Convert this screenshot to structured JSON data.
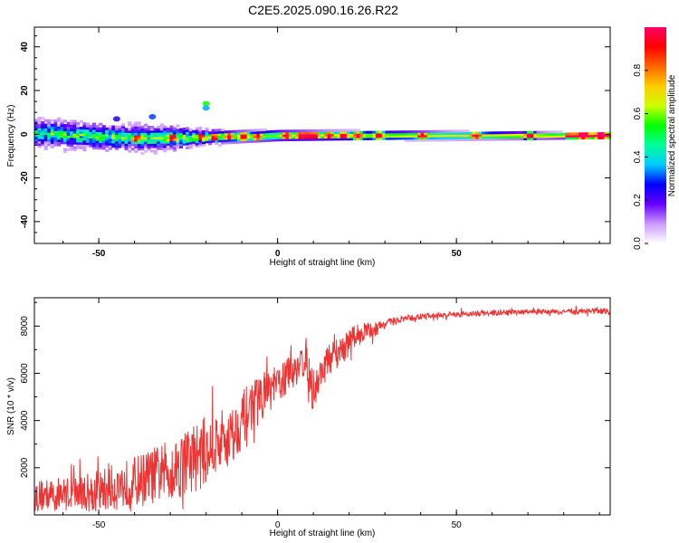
{
  "title": "C2E5.2025.090.16.26.R22",
  "chart_data": [
    {
      "type": "heatmap",
      "xlabel": "Height of straight line (km)",
      "ylabel": "Frequency (Hz)",
      "xlim": [
        -68,
        93
      ],
      "ylim": [
        -50,
        49
      ],
      "x_ticks": [
        "-50",
        "0",
        "50"
      ],
      "x_tick_values": [
        -50,
        0,
        50
      ],
      "y_ticks": [
        "40",
        "20",
        "0",
        "-20",
        "-40"
      ],
      "y_tick_values": [
        40,
        20,
        0,
        -20,
        -40
      ],
      "colorbar": {
        "label": "Normalized spectral amplitude",
        "range": [
          0,
          1
        ],
        "ticks": [
          "0.0",
          "0.2",
          "0.4",
          "0.6",
          "0.8"
        ],
        "tick_values": [
          0.0,
          0.2,
          0.4,
          0.6,
          0.8
        ],
        "colormap": [
          "#ffffff",
          "#cc99ff",
          "#6600ff",
          "#0000ff",
          "#00ccff",
          "#00ff99",
          "#00ff00",
          "#ccff00",
          "#ffcc00",
          "#ff6600",
          "#ff0000",
          "#ff0066"
        ]
      },
      "band_center_hz": [
        [
          -68,
          0
        ],
        [
          -40,
          -2
        ],
        [
          -25,
          -2
        ],
        [
          0,
          -1
        ],
        [
          30,
          -1
        ],
        [
          60,
          -1
        ],
        [
          93,
          -1
        ]
      ],
      "band_halfwidth_hz": [
        [
          -68,
          9
        ],
        [
          -30,
          8
        ],
        [
          -20,
          5
        ],
        [
          0,
          4
        ],
        [
          50,
          3
        ],
        [
          93,
          2
        ]
      ],
      "hot_spots_x": [
        -40,
        -30,
        -22,
        -18,
        -14,
        -10,
        -6,
        2,
        6,
        8,
        10,
        14,
        18,
        22,
        28,
        40,
        55,
        70,
        85,
        90
      ]
    },
    {
      "type": "line",
      "xlabel": "Height of straight line (km)",
      "ylabel": "SNR (10 * v/v)",
      "xlim": [
        -68,
        93
      ],
      "ylim": [
        0,
        9200
      ],
      "x_ticks": [
        "-50",
        "0",
        "50"
      ],
      "x_tick_values": [
        -50,
        0,
        50
      ],
      "y_ticks": [
        "2000",
        "4000",
        "6000",
        "8000"
      ],
      "y_tick_values": [
        2000,
        4000,
        6000,
        8000
      ],
      "color": "#ee3333",
      "series": [
        {
          "x": [
            -68,
            -60,
            -50,
            -40,
            -30,
            -25,
            -20,
            -15,
            -12,
            -10,
            -8,
            -5,
            -2,
            0,
            2,
            5,
            8,
            10,
            12,
            15,
            18,
            20,
            22,
            25,
            28,
            30,
            35,
            40,
            50,
            60,
            70,
            80,
            90,
            93
          ],
          "y": [
            800,
            900,
            1000,
            1400,
            1900,
            2300,
            2700,
            3200,
            3500,
            4000,
            4500,
            5000,
            5300,
            5500,
            5800,
            6200,
            6700,
            5000,
            6000,
            6700,
            7000,
            7300,
            7600,
            7800,
            7900,
            8100,
            8300,
            8400,
            8500,
            8550,
            8600,
            8600,
            8650,
            8600
          ],
          "noise": [
            700,
            700,
            900,
            1100,
            1300,
            1500,
            1500,
            1400,
            1200,
            1200,
            1100,
            1000,
            900,
            800,
            800,
            800,
            800,
            900,
            700,
            700,
            600,
            600,
            500,
            400,
            300,
            200,
            150,
            130,
            120,
            120,
            110,
            110,
            120,
            150
          ]
        }
      ]
    }
  ]
}
